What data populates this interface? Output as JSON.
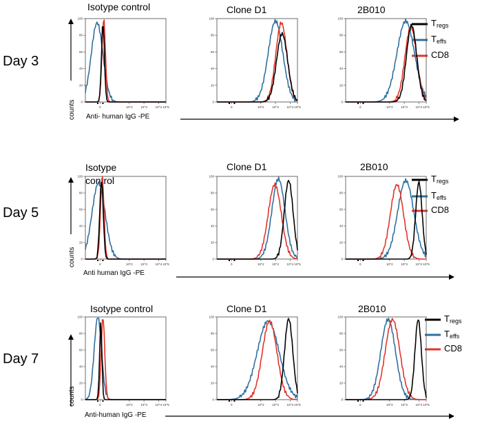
{
  "figure": {
    "y_axis_label": "counts",
    "legend": [
      {
        "main": "T",
        "sub": "regs",
        "color": "#000000"
      },
      {
        "main": "T",
        "sub": "effs",
        "color": "#2f6f9e"
      },
      {
        "main": "CD8",
        "sub": "",
        "color": "#e0342a"
      }
    ],
    "rows": [
      {
        "day": "Day 3",
        "xlabel": "Anti- human IgG -PE",
        "titles": [
          "Isotype control",
          "Clone D1",
          "2B010"
        ]
      },
      {
        "day": "Day 5",
        "xlabel": "Anti human IgG -PE",
        "titles": [
          "Isotype control",
          "Clone D1",
          "2B010"
        ]
      },
      {
        "day": "Day 7",
        "xlabel": "Anti-human IgG -PE",
        "titles": [
          "Isotype control",
          "Clone D1",
          "2B010"
        ]
      }
    ]
  },
  "chart_data": {
    "type": "line",
    "subtype": "flow-cytometry-histogram",
    "ylim": [
      0,
      100
    ],
    "xlim": [
      -1,
      4.5
    ],
    "x_scale": "biexponential (log10 PE fluorescence)",
    "y_ticks": [
      0,
      20,
      40,
      60,
      80,
      100
    ],
    "x_tick_labels": [
      "0",
      "10^2",
      "10^3",
      "10^4",
      "10^5"
    ],
    "series_names": [
      "Tregs",
      "Teffs",
      "CD8"
    ],
    "panels": [
      {
        "row": 0,
        "col": 0,
        "series": [
          {
            "name": "Tregs",
            "peak": 0.2,
            "sigma": 0.1,
            "height": 95
          },
          {
            "name": "Teffs",
            "peak": -0.2,
            "sigma": 0.4,
            "height": 95
          },
          {
            "name": "CD8",
            "peak": 0.25,
            "sigma": 0.12,
            "height": 100
          }
        ]
      },
      {
        "row": 0,
        "col": 1,
        "series": [
          {
            "name": "Tregs",
            "peak": 3.45,
            "sigma": 0.38,
            "height": 82
          },
          {
            "name": "Teffs",
            "peak": 3.0,
            "sigma": 0.5,
            "height": 97
          },
          {
            "name": "CD8",
            "peak": 3.4,
            "sigma": 0.38,
            "height": 95
          }
        ]
      },
      {
        "row": 0,
        "col": 2,
        "series": [
          {
            "name": "Tregs",
            "peak": 3.5,
            "sigma": 0.35,
            "height": 92
          },
          {
            "name": "Teffs",
            "peak": 3.1,
            "sigma": 0.6,
            "height": 97
          },
          {
            "name": "CD8",
            "peak": 3.45,
            "sigma": 0.4,
            "height": 90
          }
        ]
      },
      {
        "row": 1,
        "col": 0,
        "series": [
          {
            "name": "Tregs",
            "peak": 0.1,
            "sigma": 0.12,
            "height": 95
          },
          {
            "name": "Teffs",
            "peak": -0.1,
            "sigma": 0.45,
            "height": 92
          },
          {
            "name": "CD8",
            "peak": 0.15,
            "sigma": 0.12,
            "height": 100
          }
        ]
      },
      {
        "row": 1,
        "col": 1,
        "series": [
          {
            "name": "Tregs",
            "peak": 3.9,
            "sigma": 0.3,
            "height": 95
          },
          {
            "name": "Teffs",
            "peak": 3.2,
            "sigma": 0.45,
            "height": 97
          },
          {
            "name": "CD8",
            "peak": 2.95,
            "sigma": 0.45,
            "height": 90
          }
        ]
      },
      {
        "row": 1,
        "col": 2,
        "series": [
          {
            "name": "Tregs",
            "peak": 4.0,
            "sigma": 0.22,
            "height": 93
          },
          {
            "name": "Teffs",
            "peak": 3.1,
            "sigma": 0.55,
            "height": 95
          },
          {
            "name": "CD8",
            "peak": 2.5,
            "sigma": 0.45,
            "height": 90
          }
        ]
      },
      {
        "row": 2,
        "col": 0,
        "series": [
          {
            "name": "Tregs",
            "peak": 0.05,
            "sigma": 0.08,
            "height": 92
          },
          {
            "name": "Teffs",
            "peak": -0.15,
            "sigma": 0.25,
            "height": 100
          },
          {
            "name": "CD8",
            "peak": 0.2,
            "sigma": 0.12,
            "height": 100
          }
        ]
      },
      {
        "row": 2,
        "col": 1,
        "series": [
          {
            "name": "Tregs",
            "peak": 3.9,
            "sigma": 0.28,
            "height": 98
          },
          {
            "name": "Teffs",
            "peak": 2.5,
            "sigma": 0.75,
            "height": 95
          },
          {
            "name": "CD8",
            "peak": 2.6,
            "sigma": 0.5,
            "height": 95
          }
        ]
      },
      {
        "row": 2,
        "col": 2,
        "series": [
          {
            "name": "Tregs",
            "peak": 3.95,
            "sigma": 0.22,
            "height": 97
          },
          {
            "name": "Teffs",
            "peak": 1.9,
            "sigma": 0.5,
            "height": 97
          },
          {
            "name": "CD8",
            "peak": 2.2,
            "sigma": 0.5,
            "height": 97
          }
        ]
      }
    ]
  }
}
